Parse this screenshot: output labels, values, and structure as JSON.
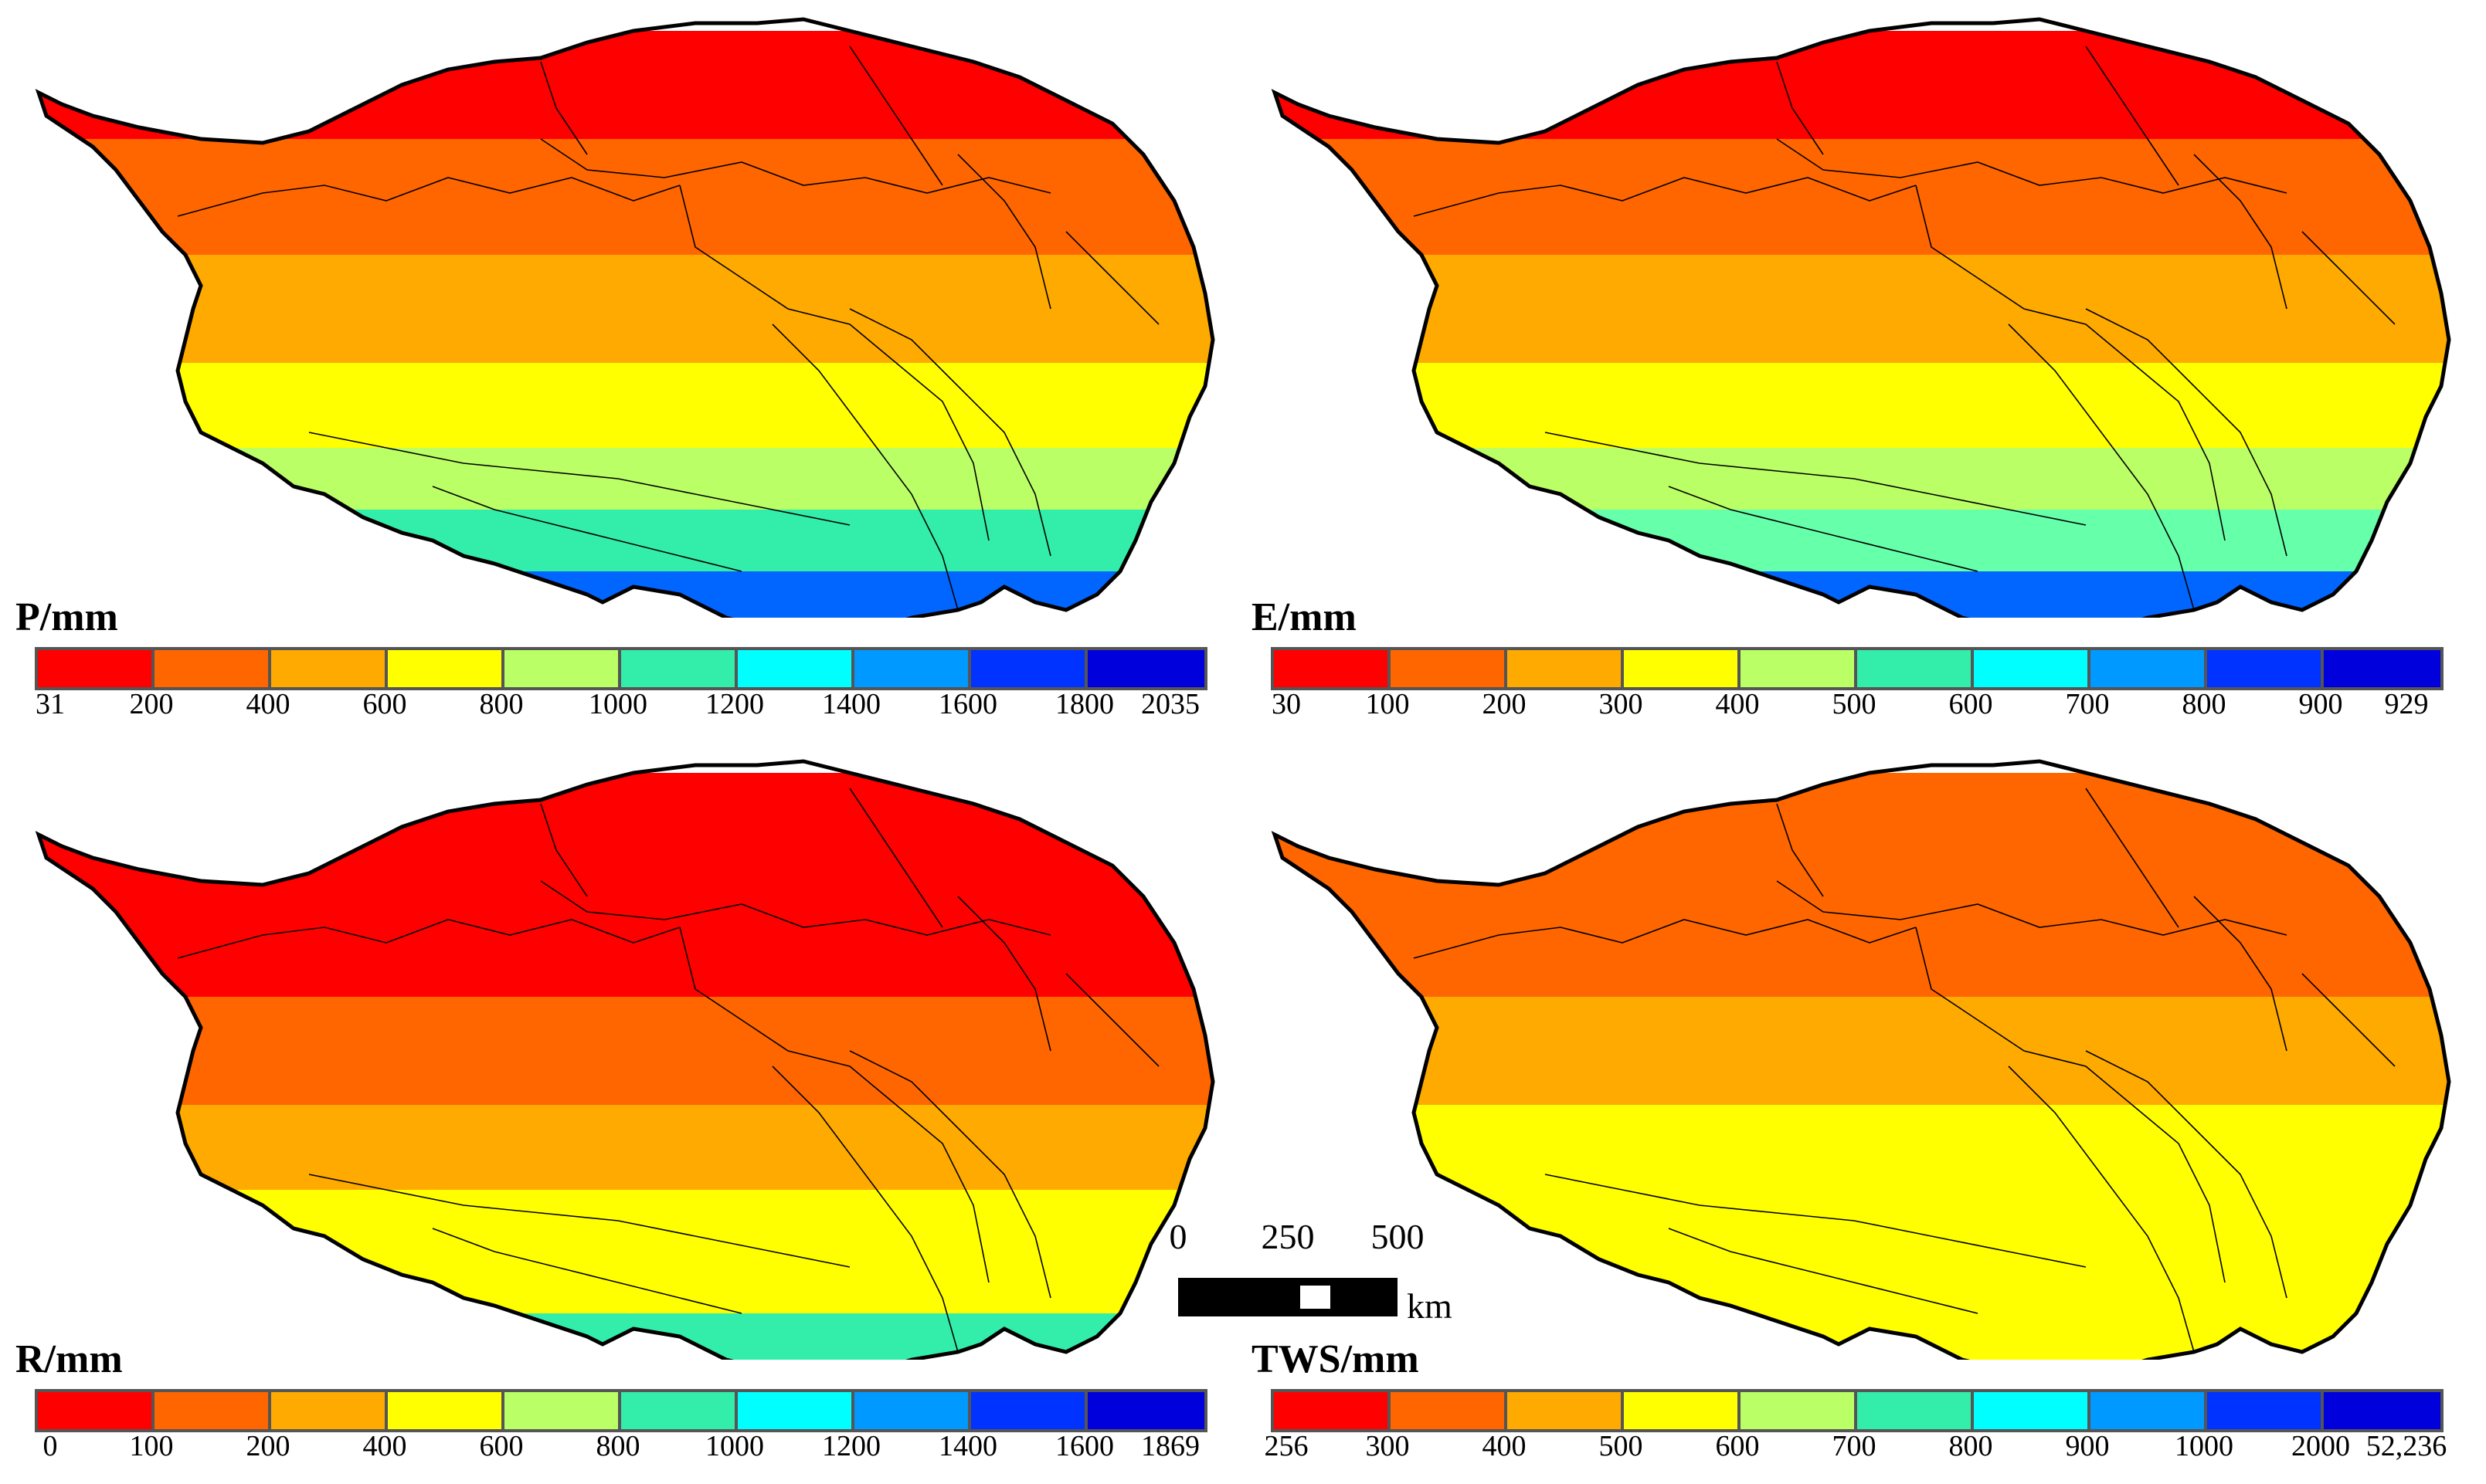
{
  "panels": [
    {
      "id": "precipitation",
      "title": "P/mm",
      "legend_colors": [
        "#ff0000",
        "#ff6600",
        "#ffaa00",
        "#ffff00",
        "#bbff66",
        "#33eeaa",
        "#00ffff",
        "#0099ff",
        "#0033ff",
        "#0000dd"
      ],
      "tick_labels": [
        "31",
        "200",
        "400",
        "600",
        "800",
        "1000",
        "1200",
        "1400",
        "1600",
        "1800",
        "2035"
      ],
      "bands": [
        "#ff0000",
        "#ff6600",
        "#ffaa00",
        "#ffff00",
        "#bbff66",
        "#33eeaa",
        "#0066ff"
      ]
    },
    {
      "id": "evaporation",
      "title": "E/mm",
      "legend_colors": [
        "#ff0000",
        "#ff6600",
        "#ffaa00",
        "#ffff00",
        "#bbff66",
        "#33eeaa",
        "#00ffff",
        "#0099ff",
        "#0033ff",
        "#0000dd"
      ],
      "tick_labels": [
        "30",
        "100",
        "200",
        "300",
        "400",
        "500",
        "600",
        "700",
        "800",
        "900",
        "929"
      ],
      "bands": [
        "#ff0000",
        "#ff6600",
        "#ffaa00",
        "#ffff00",
        "#bbff66",
        "#66ffaa",
        "#0066ff"
      ]
    },
    {
      "id": "runoff",
      "title": "R/mm",
      "legend_colors": [
        "#ff0000",
        "#ff6600",
        "#ffaa00",
        "#ffff00",
        "#bbff66",
        "#33eeaa",
        "#00ffff",
        "#0099ff",
        "#0033ff",
        "#0000dd"
      ],
      "tick_labels": [
        "0",
        "100",
        "200",
        "400",
        "600",
        "800",
        "1000",
        "1200",
        "1400",
        "1600",
        "1869"
      ],
      "bands": [
        "#ff0000",
        "#ff0000",
        "#ff6600",
        "#ffaa00",
        "#ffff00",
        "#ffff00",
        "#33eeaa"
      ]
    },
    {
      "id": "tws",
      "title": "TWS/mm",
      "legend_colors": [
        "#ff0000",
        "#ff6600",
        "#ffaa00",
        "#ffff00",
        "#bbff66",
        "#33eeaa",
        "#00ffff",
        "#0099ff",
        "#0033ff",
        "#0000dd"
      ],
      "tick_labels": [
        "256",
        "300",
        "400",
        "500",
        "600",
        "700",
        "800",
        "900",
        "1000",
        "2000",
        "52,236"
      ],
      "bands": [
        "#ff6600",
        "#ff6600",
        "#ffaa00",
        "#ffff00",
        "#ffff00",
        "#ffff00",
        "#ffff00"
      ]
    }
  ],
  "scale_bar": {
    "labels": [
      "0",
      "250",
      "500"
    ],
    "unit": "km"
  }
}
